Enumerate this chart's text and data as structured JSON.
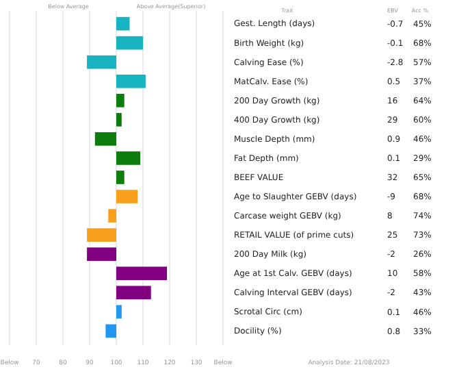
{
  "chart_data": {
    "type": "bar",
    "orientation": "horizontal",
    "categories": [
      "Gest. Length (days)",
      "Birth Weight (kg)",
      "Calving Ease (%)",
      "MatCalv. Ease (%)",
      "200 Day Growth (kg)",
      "400 Day Growth (kg)",
      "Muscle Depth (mm)",
      "Fat Depth (mm)",
      "BEEF VALUE",
      "Age to Slaughter GEBV (days)",
      "Carcase weight GEBV (kg)",
      "RETAIL VALUE (of prime cuts)",
      "200 Day Milk (kg)",
      "Age at 1st Calv. GEBV (days)",
      "Calving Interval GEBV (days)",
      "Scrotal Circ (cm)",
      "Docility (%)"
    ],
    "base": [
      100,
      100,
      100,
      100,
      100,
      100,
      100,
      100,
      100,
      100,
      100,
      100,
      100,
      100,
      100,
      100,
      100
    ],
    "values": [
      5,
      10,
      -11,
      11,
      3,
      2,
      -8,
      9,
      3,
      8,
      -3,
      -11,
      -11,
      19,
      13,
      2,
      -4
    ],
    "colors": [
      "#17b3c1",
      "#17b3c1",
      "#17b3c1",
      "#17b3c1",
      "#0c7c0c",
      "#0c7c0c",
      "#0c7c0c",
      "#0c7c0c",
      "#0c7c0c",
      "#f8a01c",
      "#f8a01c",
      "#f8a01c",
      "#800080",
      "#800080",
      "#800080",
      "#2196f3",
      "#2196f3"
    ],
    "xlim": [
      60,
      140
    ],
    "xticks": [
      {
        "value": 60,
        "label": "Below"
      },
      70,
      80,
      90,
      100,
      110,
      120,
      130,
      {
        "value": 140,
        "label": "Below"
      }
    ],
    "grid": "x",
    "annotations": [
      "Below Average",
      "Above Average(Superior)",
      "Trait",
      "EBV",
      "Acc %",
      "Analysis Date: 21/08/2023",
      "-0.7",
      "-0.1",
      "-2.8",
      "0.5",
      "16",
      "29",
      "0.9",
      "0.1",
      "32",
      "-9",
      "8",
      "25",
      "-2",
      "10",
      "-2",
      "0.1",
      "0.8",
      "45%",
      "68%",
      "57%",
      "37%",
      "64%",
      "60%",
      "46%",
      "29%",
      "65%",
      "68%",
      "74%",
      "73%",
      "26%",
      "58%",
      "43%",
      "46%",
      "33%"
    ]
  }
}
